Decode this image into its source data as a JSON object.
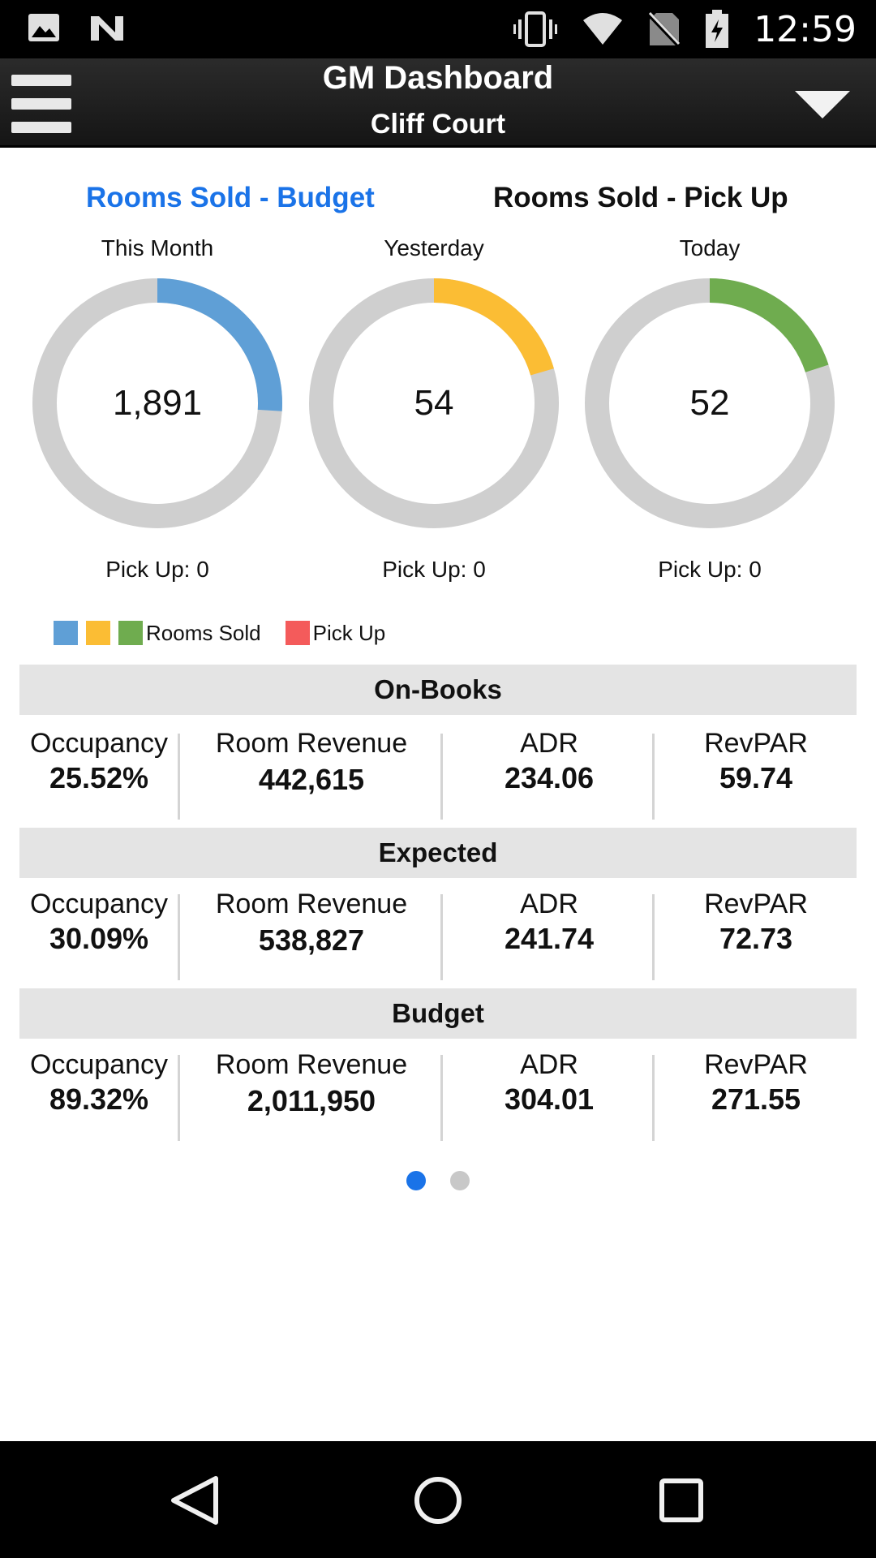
{
  "status_bar": {
    "time": "12:59",
    "icons": [
      "image-icon",
      "n-logo-icon",
      "vibrate-icon",
      "wifi-icon",
      "no-sim-icon",
      "battery-charging-icon"
    ]
  },
  "header": {
    "title": "GM Dashboard",
    "subtitle": "Cliff Court",
    "menu_icon": "hamburger-menu-icon",
    "dropdown_icon": "triangle-down-icon"
  },
  "tabs": {
    "budget": "Rooms Sold - Budget",
    "pickup": "Rooms Sold - Pick Up"
  },
  "donuts": [
    {
      "label": "This Month",
      "value": "1,891",
      "pickup": "Pick Up: 0",
      "fill_fraction": 0.26,
      "color": "#5f9fd6"
    },
    {
      "label": "Yesterday",
      "value": "54",
      "pickup": "Pick Up: 0",
      "fill_fraction": 0.205,
      "color": "#fbbd34"
    },
    {
      "label": "Today",
      "value": "52",
      "pickup": "Pick Up: 0",
      "fill_fraction": 0.2,
      "color": "#6fac4f"
    }
  ],
  "donut_track_color": "#cfcfcf",
  "legend": {
    "rooms_sold": "Rooms Sold",
    "pickup": "Pick Up",
    "colors": [
      "#5f9fd6",
      "#fbbd34",
      "#6fac4f",
      "#f45b5b"
    ]
  },
  "sections": [
    {
      "title": "On-Books",
      "metrics": [
        {
          "label": "Occupancy",
          "value": "25.52%"
        },
        {
          "label": "Room Revenue",
          "value": "442,615"
        },
        {
          "label": "ADR",
          "value": "234.06"
        },
        {
          "label": "RevPAR",
          "value": "59.74"
        }
      ]
    },
    {
      "title": "Expected",
      "metrics": [
        {
          "label": "Occupancy",
          "value": "30.09%"
        },
        {
          "label": "Room Revenue",
          "value": "538,827"
        },
        {
          "label": "ADR",
          "value": "241.74"
        },
        {
          "label": "RevPAR",
          "value": "72.73"
        }
      ]
    },
    {
      "title": "Budget",
      "metrics": [
        {
          "label": "Occupancy",
          "value": "89.32%"
        },
        {
          "label": "Room Revenue",
          "value": "2,011,950"
        },
        {
          "label": "ADR",
          "value": "304.01"
        },
        {
          "label": "RevPAR",
          "value": "271.55"
        }
      ]
    }
  ],
  "pager": {
    "active_color": "#1a73e8",
    "inactive_color": "#c8c8c8",
    "count": 2,
    "active": 0
  },
  "nav_bar": {
    "icons": [
      "back-icon",
      "home-icon",
      "recents-icon"
    ]
  }
}
